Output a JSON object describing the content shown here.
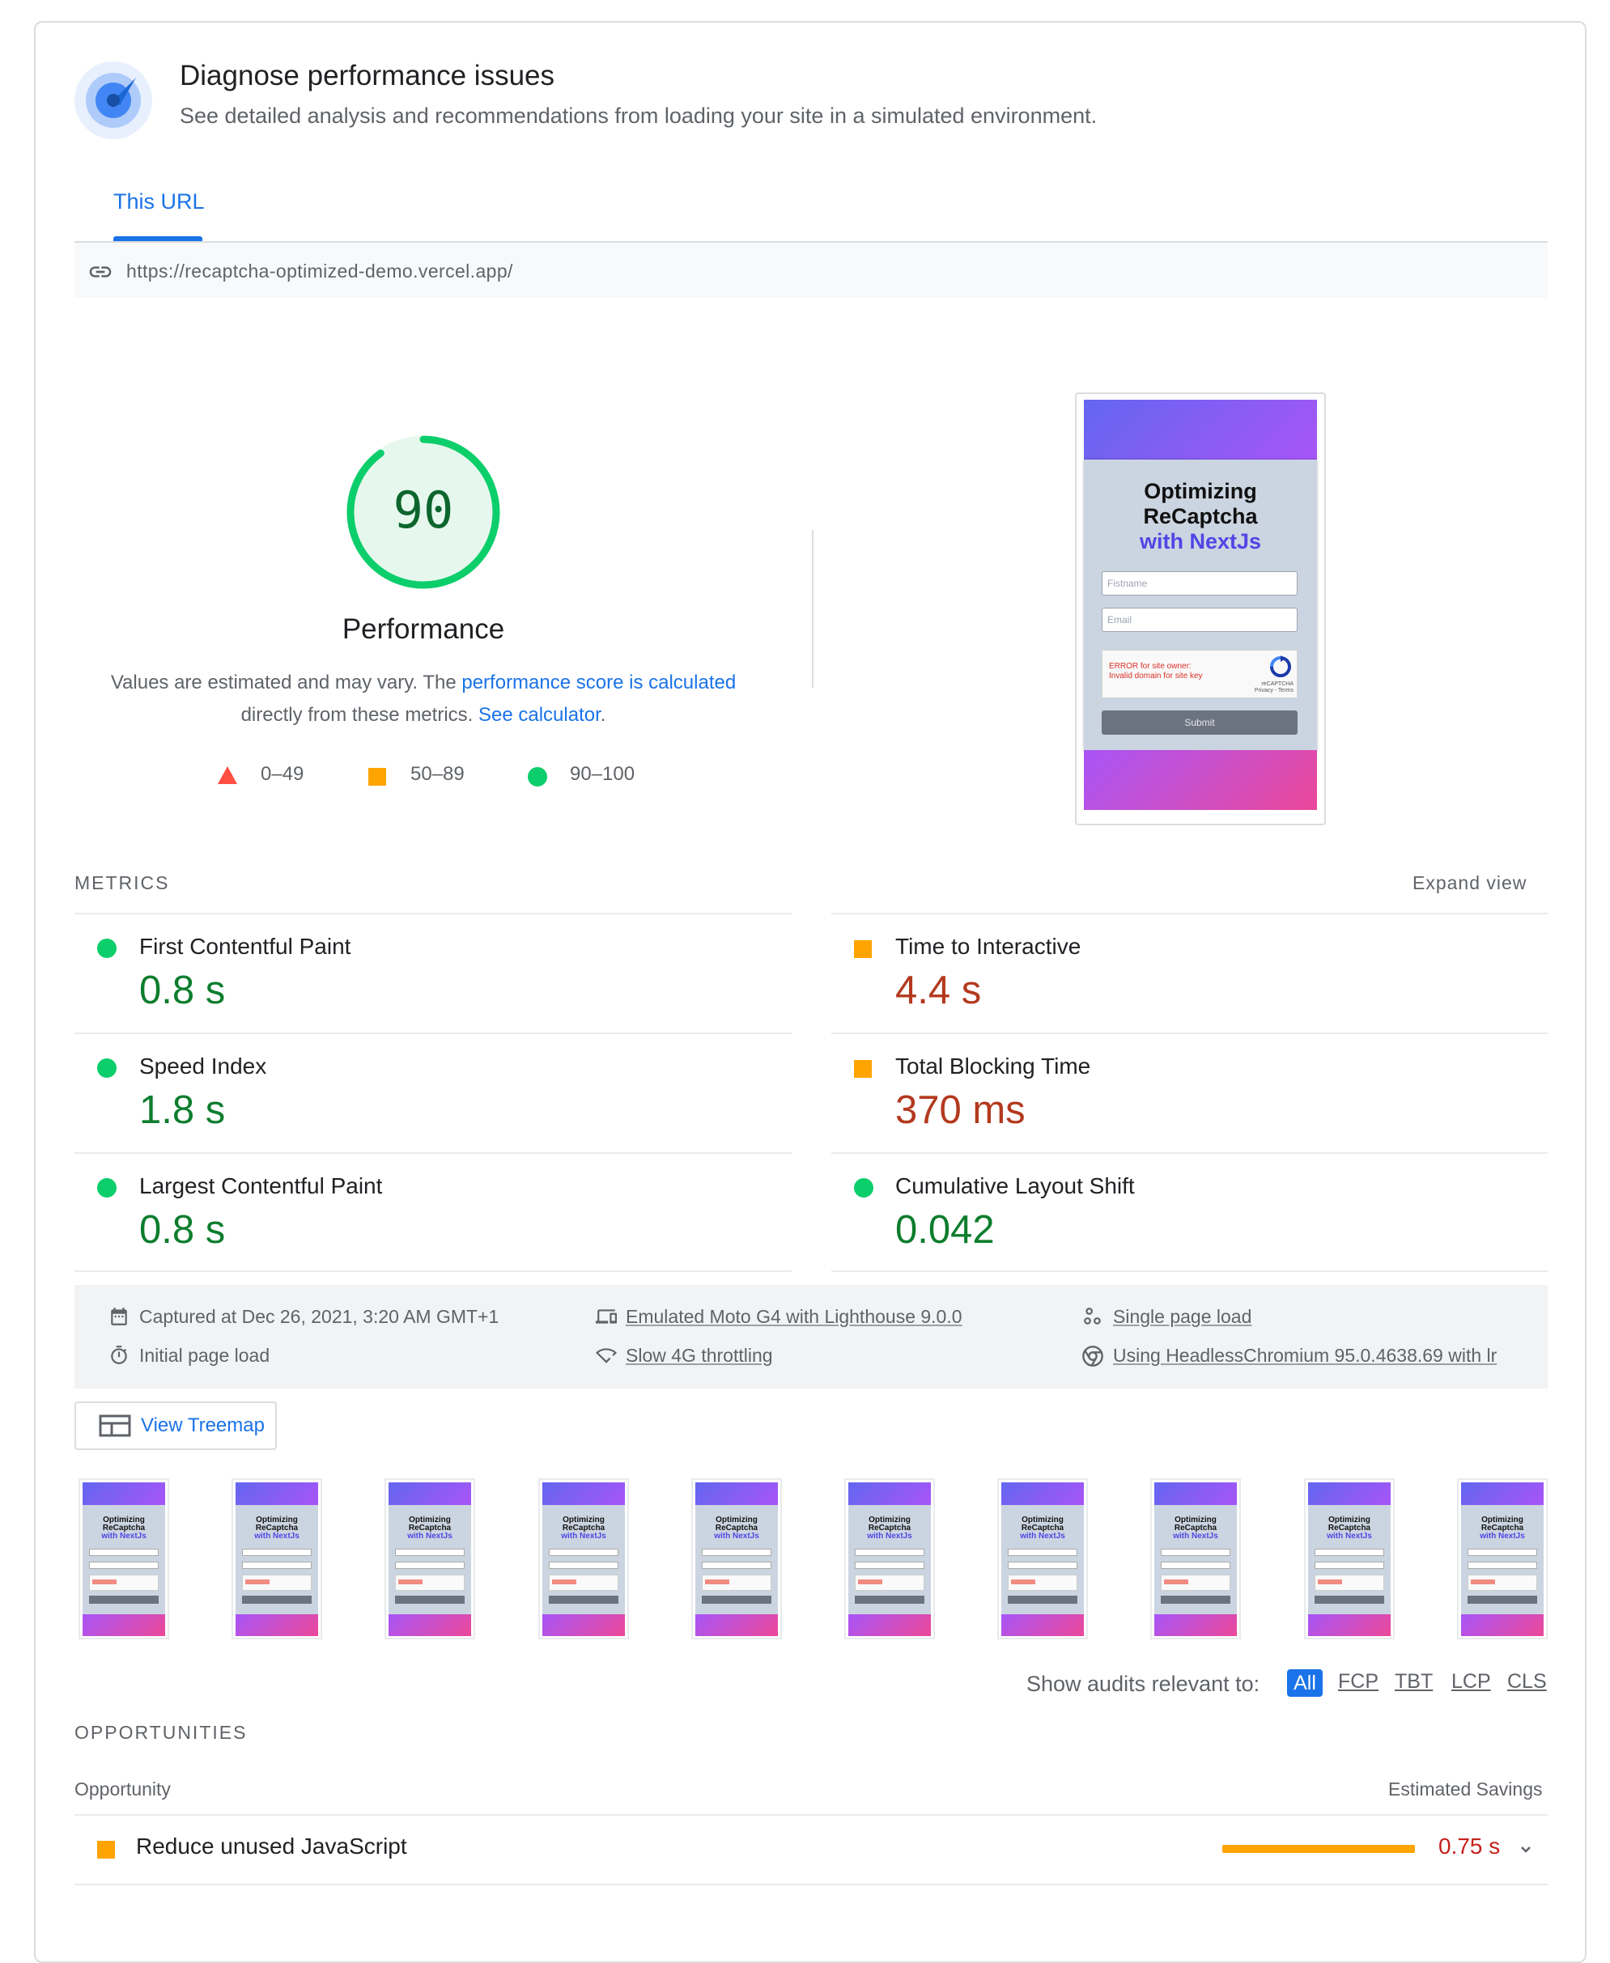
{
  "header": {
    "title": "Diagnose performance issues",
    "subtitle": "See detailed analysis and recommendations from loading your site in a simulated environment.",
    "icon": "gauge-icon"
  },
  "tabs": [
    {
      "label": "This URL",
      "active": true
    }
  ],
  "url": "https://recaptcha-optimized-demo.vercel.app/",
  "score": {
    "value": "90",
    "fraction": 0.9,
    "label": "Performance",
    "desc_prefix": "Values are estimated and may vary. The ",
    "desc_link1": "performance score is calculated",
    "desc_mid": " directly from these metrics. ",
    "desc_link2": "See calculator",
    "desc_suffix": "."
  },
  "legend": [
    {
      "label": "0–49",
      "shape": "triangle",
      "color": "#ff4e42"
    },
    {
      "label": "50–89",
      "shape": "square",
      "color": "#ffa400"
    },
    {
      "label": "90–100",
      "shape": "circle",
      "color": "#0cce6b"
    }
  ],
  "screenshot": {
    "heading_line1": "Optimizing",
    "heading_line2": "ReCaptcha",
    "heading_line3": "with NextJs",
    "firstname_placeholder": "Fistname",
    "email_placeholder": "Email",
    "captcha_error_line1": "ERROR for site owner:",
    "captcha_error_line2": "Invalid domain for site key",
    "captcha_brand": "reCAPTCHA",
    "captcha_links": "Privacy - Terms",
    "submit_label": "Submit"
  },
  "metrics": {
    "title": "METRICS",
    "expand_label": "Expand view",
    "items": [
      {
        "name": "First Contentful Paint",
        "value": "0.8 s",
        "status": "good"
      },
      {
        "name": "Time to Interactive",
        "value": "4.4 s",
        "status": "average"
      },
      {
        "name": "Speed Index",
        "value": "1.8 s",
        "status": "good"
      },
      {
        "name": "Total Blocking Time",
        "value": "370 ms",
        "status": "average"
      },
      {
        "name": "Largest Contentful Paint",
        "value": "0.8 s",
        "status": "good"
      },
      {
        "name": "Cumulative Layout Shift",
        "value": "0.042",
        "status": "good"
      }
    ]
  },
  "run_info": {
    "captured": "Captured at Dec 26, 2021, 3:20 AM GMT+1",
    "initial_load": "Initial page load",
    "device": "Emulated Moto G4 with Lighthouse 9.0.0",
    "throttling": "Slow 4G throttling",
    "page_load": "Single page load",
    "browser": "Using HeadlessChromium 95.0.4638.69 with lr"
  },
  "treemap_label": "View Treemap",
  "filmstrip_count": 10,
  "filter": {
    "label": "Show audits relevant to:",
    "options": [
      "All",
      "FCP",
      "TBT",
      "LCP",
      "CLS"
    ],
    "selected": "All"
  },
  "opportunities": {
    "title": "OPPORTUNITIES",
    "col_opportunity": "Opportunity",
    "col_savings": "Estimated Savings",
    "items": [
      {
        "name": "Reduce unused JavaScript",
        "savings": "0.75 s",
        "savings_seconds": 0.75
      }
    ]
  },
  "colors": {
    "accent": "#1a73e8",
    "good": "#0cce6b",
    "average": "#ffa400",
    "poor": "#ff4e42"
  }
}
